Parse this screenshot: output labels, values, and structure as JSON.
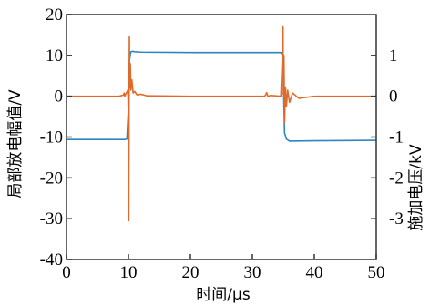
{
  "chart_data": {
    "type": "line",
    "title": "",
    "xlabel": "时间/μs",
    "ylabel_left": "局部放电幅值/V",
    "ylabel_right": "施加电压/kV",
    "xlim": [
      0,
      50
    ],
    "ylim_left": [
      -40,
      20
    ],
    "ylim_right": [
      -4,
      2
    ],
    "x_ticks": [
      0,
      10,
      20,
      30,
      40,
      50
    ],
    "x_tick_labels": [
      "0",
      "10",
      "20",
      "30",
      "40",
      "50"
    ],
    "y_left_ticks": [
      20,
      10,
      0,
      -10,
      -20,
      -30,
      -40
    ],
    "y_left_tick_labels": [
      "20",
      "10",
      "0",
      "-10",
      "-20",
      "-30",
      "-40"
    ],
    "y_right_ticks": [
      1,
      0,
      -1,
      -2,
      -3
    ],
    "y_right_tick_labels": [
      "1",
      "0",
      "-1",
      "-2",
      "-3"
    ],
    "grid": false,
    "legend": "none",
    "series": [
      {
        "axis": "right",
        "color": "#2e86c1",
        "x": [
          0,
          9.4,
          9.75,
          10.0,
          10.15,
          10.35,
          10.6,
          11.0,
          12,
          20,
          30,
          34.6,
          34.9,
          35.05,
          35.2,
          35.5,
          36,
          40,
          50
        ],
        "y": [
          -1.06,
          -1.06,
          -1.05,
          -0.3,
          0.85,
          1.08,
          1.1,
          1.09,
          1.08,
          1.07,
          1.07,
          1.07,
          1.0,
          0.1,
          -0.9,
          -1.05,
          -1.1,
          -1.09,
          -1.08
        ]
      },
      {
        "axis": "left",
        "color": "#e06a2a",
        "x": [
          0,
          8.5,
          9.2,
          9.3,
          9.4,
          9.9,
          10.0,
          10.05,
          10.1,
          10.15,
          10.2,
          10.3,
          10.4,
          10.55,
          10.75,
          11.0,
          11.4,
          12,
          13,
          20,
          30,
          32,
          32.2,
          32.3,
          32.5,
          33,
          34.6,
          34.75,
          34.85,
          34.95,
          35.0,
          35.1,
          35.2,
          35.35,
          35.5,
          35.7,
          36,
          36.5,
          37.5,
          40,
          50
        ],
        "y": [
          0,
          0,
          0.3,
          0.8,
          0,
          1.5,
          -5,
          -30.5,
          -3,
          14.5,
          2,
          8,
          1.5,
          4,
          0.8,
          1.2,
          0.3,
          0.5,
          0.1,
          0,
          0,
          0,
          0.5,
          0.9,
          0,
          0.2,
          0,
          6,
          10,
          17,
          0.5,
          10,
          -6.5,
          2,
          -2.5,
          1.5,
          -1.5,
          0.8,
          -0.5,
          0,
          0
        ]
      }
    ]
  }
}
